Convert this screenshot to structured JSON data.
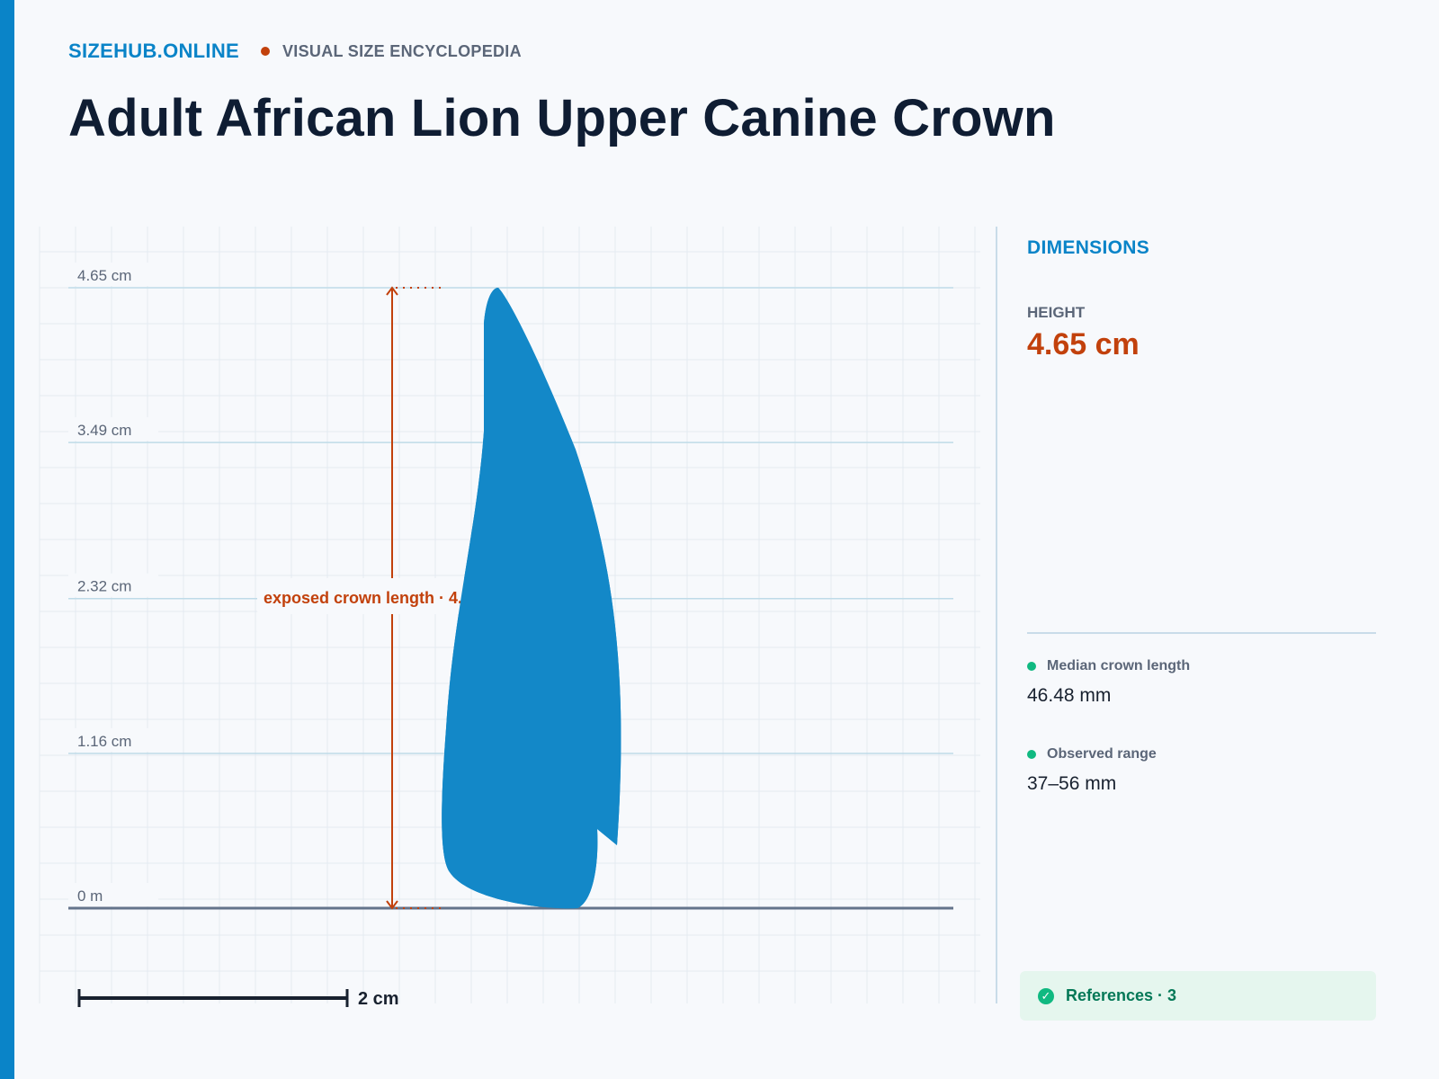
{
  "header": {
    "brand": "SIZEHUB.ONLINE",
    "tagline": "VISUAL SIZE ENCYCLOPEDIA"
  },
  "title": "Adult African Lion Upper Canine Crown",
  "colors": {
    "accent": "#0a84c8",
    "highlight": "#c2410c",
    "shape_fill": "#1388c8",
    "positive": "#10b981"
  },
  "diagram": {
    "ticks": [
      {
        "label": "4.65 cm",
        "value": 4.65
      },
      {
        "label": "3.49 cm",
        "value": 3.49
      },
      {
        "label": "2.32 cm",
        "value": 2.32
      },
      {
        "label": "1.16 cm",
        "value": 1.16
      },
      {
        "label": "0 m",
        "value": 0
      }
    ],
    "max_value_cm": 4.65,
    "dimension_label": "exposed crown length · 4.",
    "scale_bar": {
      "label": "2 cm",
      "length_cm": 2
    },
    "shape_icon": "canine-tooth-silhouette"
  },
  "panel": {
    "title": "DIMENSIONS",
    "height_label": "HEIGHT",
    "height_value": "4.65 cm",
    "stats": [
      {
        "label": "Median crown length",
        "value": "46.48 mm"
      },
      {
        "label": "Observed range",
        "value": "37–56 mm"
      }
    ],
    "references_label": "References · 3",
    "references_icon": "check-circle-icon"
  }
}
